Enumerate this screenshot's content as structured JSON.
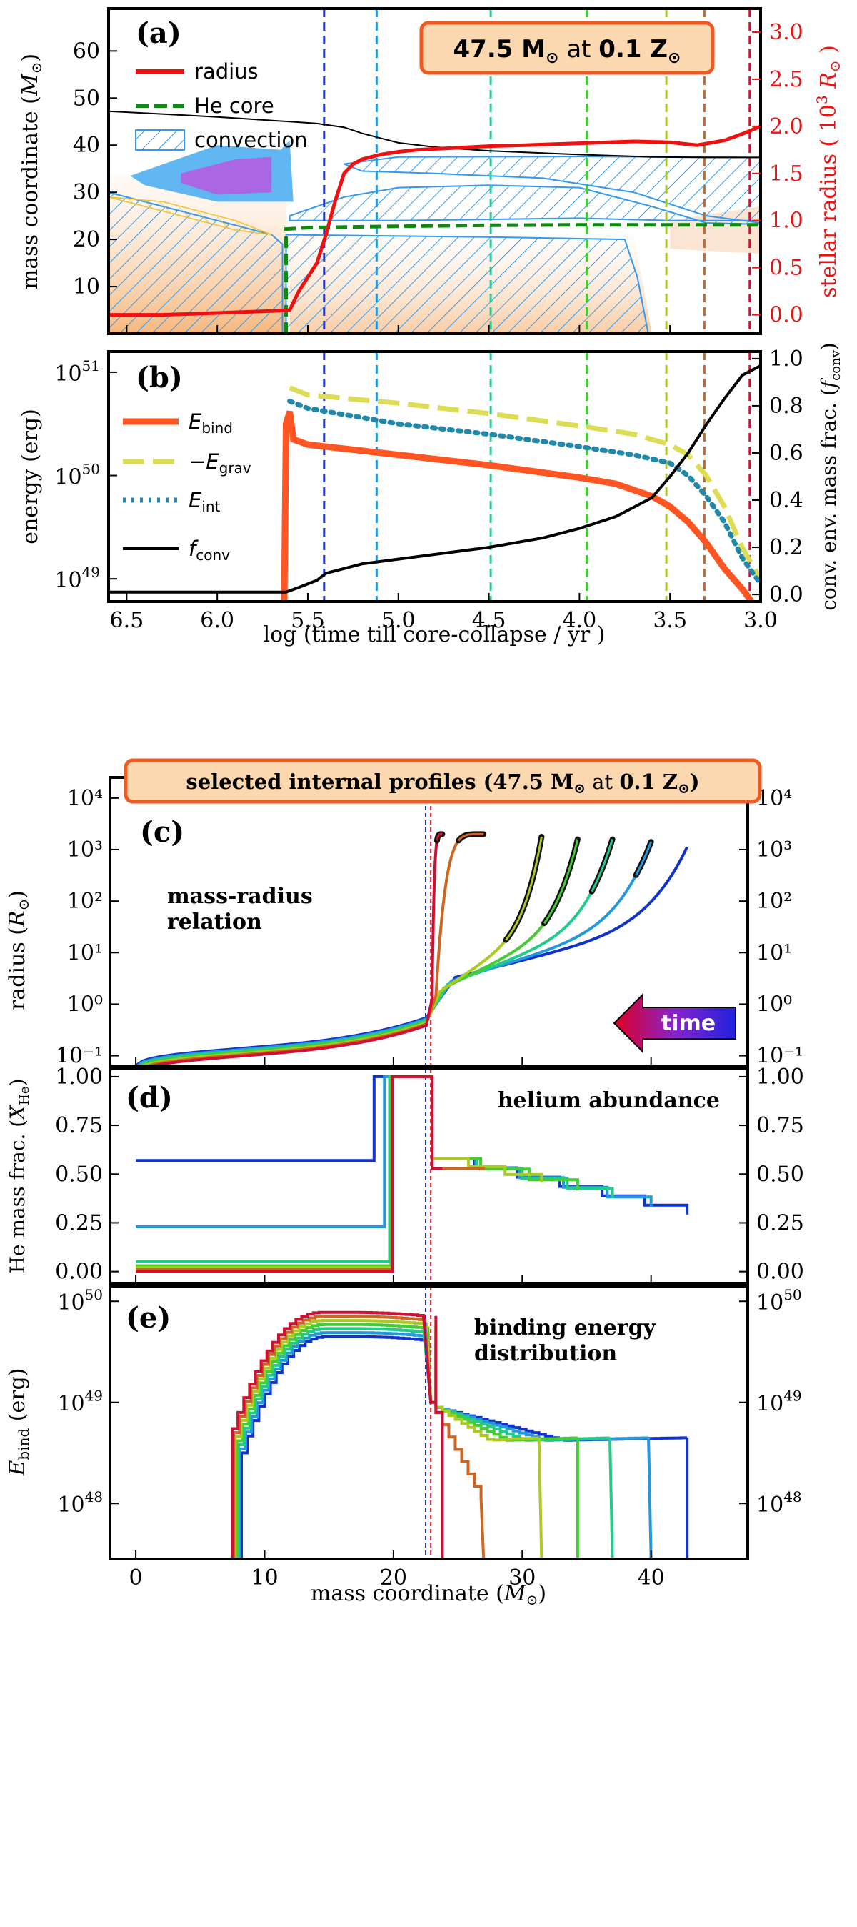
{
  "chart_data": [
    {
      "panel": "a",
      "type": "line",
      "panel_label": "(a)",
      "title_box": {
        "mass": "47.5",
        "metal": "0.1",
        "mass_unit": "M",
        "metal_unit": "Z",
        "at": "at",
        "sun": "⊙"
      },
      "xlim": [
        6.6,
        3.0
      ],
      "ylim_left": [
        0,
        69
      ],
      "ylim_right": [
        -0.2,
        3.25
      ],
      "ylabel_left": "mass coordinate (M⊙)",
      "ylabel_right": "stellar radius ( 10³ R⊙ )",
      "yticks_left": [
        10,
        20,
        30,
        40,
        50,
        60
      ],
      "yticks_right": [
        "0.0",
        "0.5",
        "1.0",
        "1.5",
        "2.0",
        "2.5",
        "3.0"
      ],
      "legend": [
        {
          "label": "radius",
          "color": "#ee1111",
          "style": "line"
        },
        {
          "label": "He core",
          "color": "#118811",
          "style": "dashed"
        },
        {
          "label": "convection",
          "color": "#3399ee",
          "style": "hatch"
        }
      ],
      "series": [
        {
          "name": "total mass",
          "color": "#000000",
          "x": [
            6.6,
            6.4,
            6.2,
            6.0,
            5.8,
            5.6,
            5.45,
            5.3,
            5.2,
            5.1,
            5.0,
            4.8,
            4.5,
            4.0,
            3.6,
            3.3,
            3.0
          ],
          "y": [
            47.2,
            46.8,
            46.4,
            46.0,
            45.5,
            45.0,
            44.6,
            43.8,
            42.5,
            41.5,
            40.5,
            39.6,
            38.8,
            38.0,
            37.5,
            37.4,
            37.4
          ]
        },
        {
          "name": "He core",
          "color": "#118811",
          "x": [
            5.62,
            5.62,
            5.5,
            5.0,
            4.5,
            4.0,
            3.5,
            3.0
          ],
          "y": [
            0,
            22.2,
            22.5,
            22.8,
            23.0,
            23.1,
            23.1,
            23.1
          ]
        },
        {
          "name": "radius",
          "color": "#ee1111",
          "x": [
            6.6,
            6.3,
            6.0,
            5.7,
            5.6,
            5.55,
            5.45,
            5.4,
            5.35,
            5.3,
            5.25,
            5.2,
            5.1,
            5.0,
            4.9,
            4.7,
            4.5,
            4.3,
            4.0,
            3.7,
            3.5,
            3.35,
            3.2,
            3.1,
            3.0
          ],
          "y": [
            0.0,
            0.0,
            0.02,
            0.04,
            0.05,
            0.25,
            0.55,
            0.85,
            1.2,
            1.5,
            1.6,
            1.65,
            1.7,
            1.73,
            1.75,
            1.77,
            1.79,
            1.8,
            1.82,
            1.84,
            1.83,
            1.8,
            1.85,
            1.92,
            2.0
          ]
        }
      ],
      "vlines": [
        {
          "x": 5.41,
          "color": "#2233bb"
        },
        {
          "x": 5.12,
          "color": "#2299dd"
        },
        {
          "x": 4.49,
          "color": "#22cc99"
        },
        {
          "x": 3.96,
          "color": "#44cc33"
        },
        {
          "x": 3.52,
          "color": "#aacc22"
        },
        {
          "x": 3.31,
          "color": "#cc6622"
        },
        {
          "x": 3.06,
          "color": "#cc1133"
        }
      ]
    },
    {
      "panel": "b",
      "type": "line",
      "panel_label": "(b)",
      "xlim": [
        6.6,
        3.0
      ],
      "ylim_left_log": [
        48.78,
        51.2
      ],
      "ylim_right": [
        -0.03,
        1.03
      ],
      "ylabel_left": "energy (erg)",
      "ylabel_right": "conv. env. mass frac. (f_conv)",
      "yticks_left": [
        49,
        50,
        51
      ],
      "yticks_right": [
        "0.0",
        "0.2",
        "0.4",
        "0.6",
        "0.8",
        "1.0"
      ],
      "xlabel": "log (time till core-collapse / yr )",
      "xticks": [
        "6.5",
        "6.0",
        "5.5",
        "5.0",
        "4.5",
        "4.0",
        "3.5",
        "3.0"
      ],
      "legend": [
        {
          "label": "E_bind",
          "color": "#ff5522"
        },
        {
          "label": "−E_grav",
          "color": "#dddd55"
        },
        {
          "label": "E_int",
          "color": "#2288aa"
        },
        {
          "label": "f_conv",
          "color": "#000000"
        }
      ],
      "series": [
        {
          "name": "E_bind",
          "color": "#ff5522",
          "x": [
            5.63,
            5.62,
            5.6,
            5.58,
            5.5,
            5.0,
            4.5,
            4.0,
            3.8,
            3.6,
            3.5,
            3.4,
            3.3,
            3.2,
            3.1,
            3.05
          ],
          "y": [
            48.78,
            50.5,
            50.62,
            50.35,
            50.3,
            50.2,
            50.1,
            49.98,
            49.92,
            49.8,
            49.7,
            49.55,
            49.35,
            49.1,
            48.9,
            48.78
          ]
        },
        {
          "name": "-E_grav",
          "color": "#dddd55",
          "x": [
            5.6,
            5.5,
            5.0,
            4.5,
            4.0,
            3.7,
            3.5,
            3.4,
            3.3,
            3.2,
            3.1,
            3.0
          ],
          "y": [
            50.85,
            50.78,
            50.7,
            50.6,
            50.48,
            50.4,
            50.3,
            50.2,
            50.0,
            49.7,
            49.3,
            49.0
          ]
        },
        {
          "name": "E_int",
          "color": "#2288aa",
          "x": [
            5.6,
            5.5,
            5.0,
            4.5,
            4.0,
            3.7,
            3.5,
            3.4,
            3.3,
            3.2,
            3.1,
            3.0
          ],
          "y": [
            50.72,
            50.65,
            50.5,
            50.4,
            50.28,
            50.2,
            50.12,
            50.0,
            49.8,
            49.55,
            49.2,
            48.95
          ]
        },
        {
          "name": "f_conv",
          "color": "#000000",
          "x": [
            6.6,
            6.0,
            5.7,
            5.62,
            5.55,
            5.45,
            5.4,
            5.3,
            5.2,
            5.0,
            4.8,
            4.5,
            4.2,
            4.0,
            3.8,
            3.6,
            3.5,
            3.4,
            3.3,
            3.2,
            3.1,
            3.0
          ],
          "y": [
            0.01,
            0.01,
            0.01,
            0.01,
            0.03,
            0.06,
            0.09,
            0.11,
            0.13,
            0.15,
            0.17,
            0.2,
            0.24,
            0.28,
            0.33,
            0.41,
            0.5,
            0.6,
            0.72,
            0.83,
            0.93,
            0.97
          ]
        }
      ]
    },
    {
      "panel": "c",
      "type": "line",
      "panel_label": "(c)",
      "title_box": {
        "text": "selected internal profiles (",
        "mass": "47.5",
        "metal": "0.1",
        "at": "at",
        "close": ")"
      },
      "annotation": [
        "mass-radius",
        "relation"
      ],
      "arrow_label": "time",
      "ylabel": "radius (R⊙)",
      "ylim_log": [
        -1.2,
        4.4
      ],
      "yticks": [
        "10⁻¹",
        "10⁰",
        "10¹",
        "10²",
        "10³",
        "10⁴"
      ],
      "xlim": [
        -2,
        47.5
      ],
      "profiles": [
        {
          "color": "#1133cc",
          "m_top": 42.8,
          "logR_top": 3.05,
          "conv": 0.0
        },
        {
          "color": "#2299dd",
          "m_top": 40.0,
          "logR_top": 3.15,
          "conv": 0.05
        },
        {
          "color": "#22cc88",
          "m_top": 37.0,
          "logR_top": 3.2,
          "conv": 0.1
        },
        {
          "color": "#44cc33",
          "m_top": 34.3,
          "logR_top": 3.2,
          "conv": 0.2
        },
        {
          "color": "#aacc22",
          "m_top": 31.5,
          "logR_top": 3.25,
          "conv": 0.28
        },
        {
          "color": "#cc6622",
          "m_top": 27.0,
          "logR_top": 3.3,
          "conv": 0.6
        },
        {
          "color": "#cc1133",
          "m_top": 23.8,
          "logR_top": 3.3,
          "conv": 0.97
        }
      ]
    },
    {
      "panel": "d",
      "type": "line",
      "panel_label": "(d)",
      "annotation": "helium abundance",
      "ylabel": "He mass frac. (X_He)",
      "ylim": [
        -0.06,
        1.04
      ],
      "yticks": [
        "0.00",
        "0.25",
        "0.50",
        "0.75",
        "1.00"
      ],
      "series": [
        {
          "name": "profile 1",
          "color": "#1133cc",
          "central": 0.57,
          "step_at": 18.5
        },
        {
          "name": "profile 2",
          "color": "#2299dd",
          "central": 0.23,
          "step_at": 19.3
        },
        {
          "name": "profile 3",
          "color": "#22cc88",
          "central": 0.05,
          "step_at": 19.7
        },
        {
          "name": "profile 4",
          "color": "#44cc33",
          "central": 0.03,
          "step_at": 19.8
        },
        {
          "name": "profile 5",
          "color": "#aacc22",
          "central": 0.02,
          "step_at": 19.9
        },
        {
          "name": "profile 6",
          "color": "#cc6622",
          "central": 0.01,
          "step_at": 19.9
        },
        {
          "name": "profile 7",
          "color": "#cc1133",
          "central": 0.0,
          "step_at": 19.9
        }
      ]
    },
    {
      "panel": "e",
      "type": "line",
      "panel_label": "(e)",
      "annotation": [
        "binding energy",
        "distribution"
      ],
      "ylabel": "E_bind (erg)",
      "ylim_log": [
        47.45,
        50.15
      ],
      "yticks": [
        48,
        49,
        50
      ],
      "xlabel": "mass coordinate (M⊙)",
      "xticks": [
        "0",
        "10",
        "20",
        "30",
        "40"
      ],
      "xlim": [
        -2,
        47.5
      ]
    }
  ]
}
